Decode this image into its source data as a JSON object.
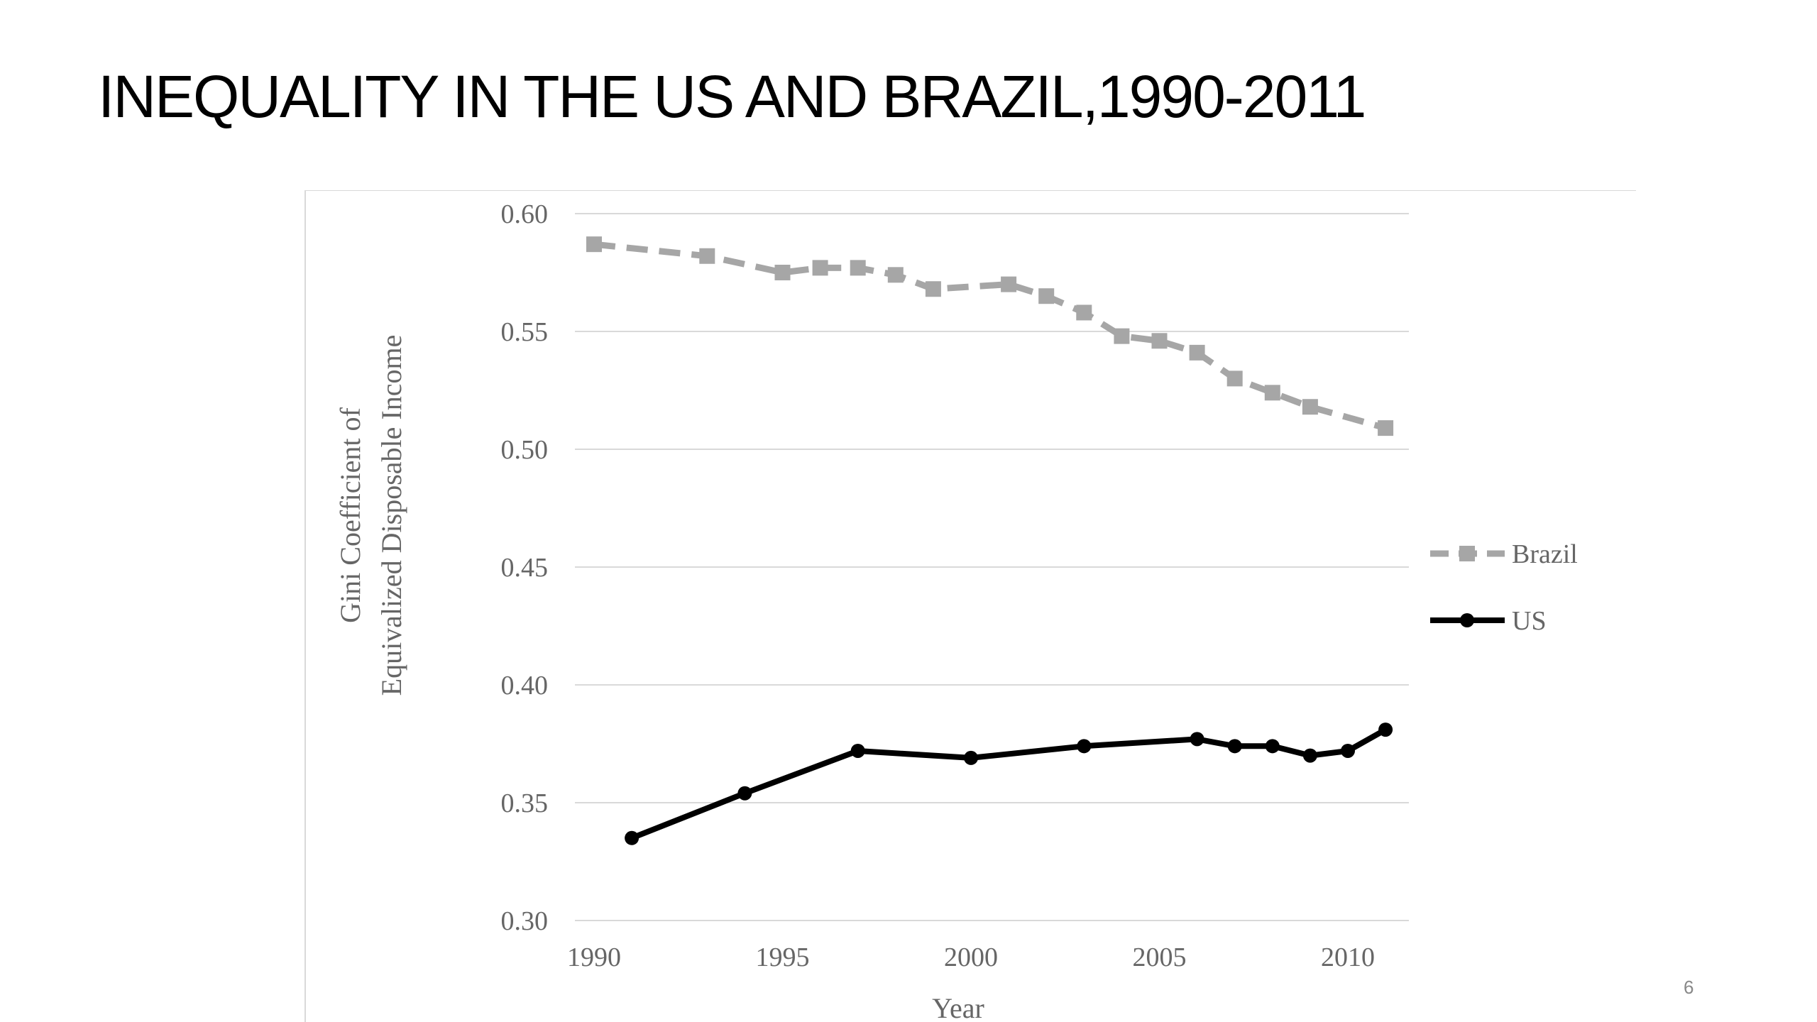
{
  "slide": {
    "title": "INEQUALITY IN THE US AND BRAZIL,1990-2011",
    "page_number": "6"
  },
  "chart_data": {
    "type": "line",
    "title": "",
    "xlabel": "Year",
    "ylabel_lines": [
      "Gini Coefficient of",
      "Equivalized Disposable Income"
    ],
    "xlim": [
      1990,
      2012
    ],
    "ylim": [
      0.3,
      0.6
    ],
    "xticks": [
      1990,
      1995,
      2000,
      2005,
      2010
    ],
    "yticks": [
      "0.30",
      "0.35",
      "0.40",
      "0.45",
      "0.50",
      "0.55",
      "0.60"
    ],
    "grid": "horizontal",
    "legend_position": "right",
    "series": [
      {
        "name": "Brazil",
        "color": "#a6a6a6",
        "line_style": "dashed",
        "marker": "square",
        "x": [
          1990,
          1993,
          1995,
          1996,
          1997,
          1998,
          1999,
          2001,
          2002,
          2003,
          2004,
          2005,
          2006,
          2007,
          2008,
          2009,
          2011
        ],
        "y": [
          0.587,
          0.582,
          0.575,
          0.577,
          0.577,
          0.574,
          0.568,
          0.57,
          0.565,
          0.558,
          0.548,
          0.546,
          0.541,
          0.53,
          0.524,
          0.518,
          0.509
        ]
      },
      {
        "name": "US",
        "color": "#000000",
        "line_style": "solid",
        "marker": "circle",
        "x": [
          1991,
          1994,
          1997,
          2000,
          2003,
          2006,
          2007,
          2008,
          2009,
          2010,
          2011
        ],
        "y": [
          0.335,
          0.354,
          0.372,
          0.369,
          0.374,
          0.377,
          0.374,
          0.374,
          0.37,
          0.372,
          0.381
        ]
      }
    ]
  }
}
